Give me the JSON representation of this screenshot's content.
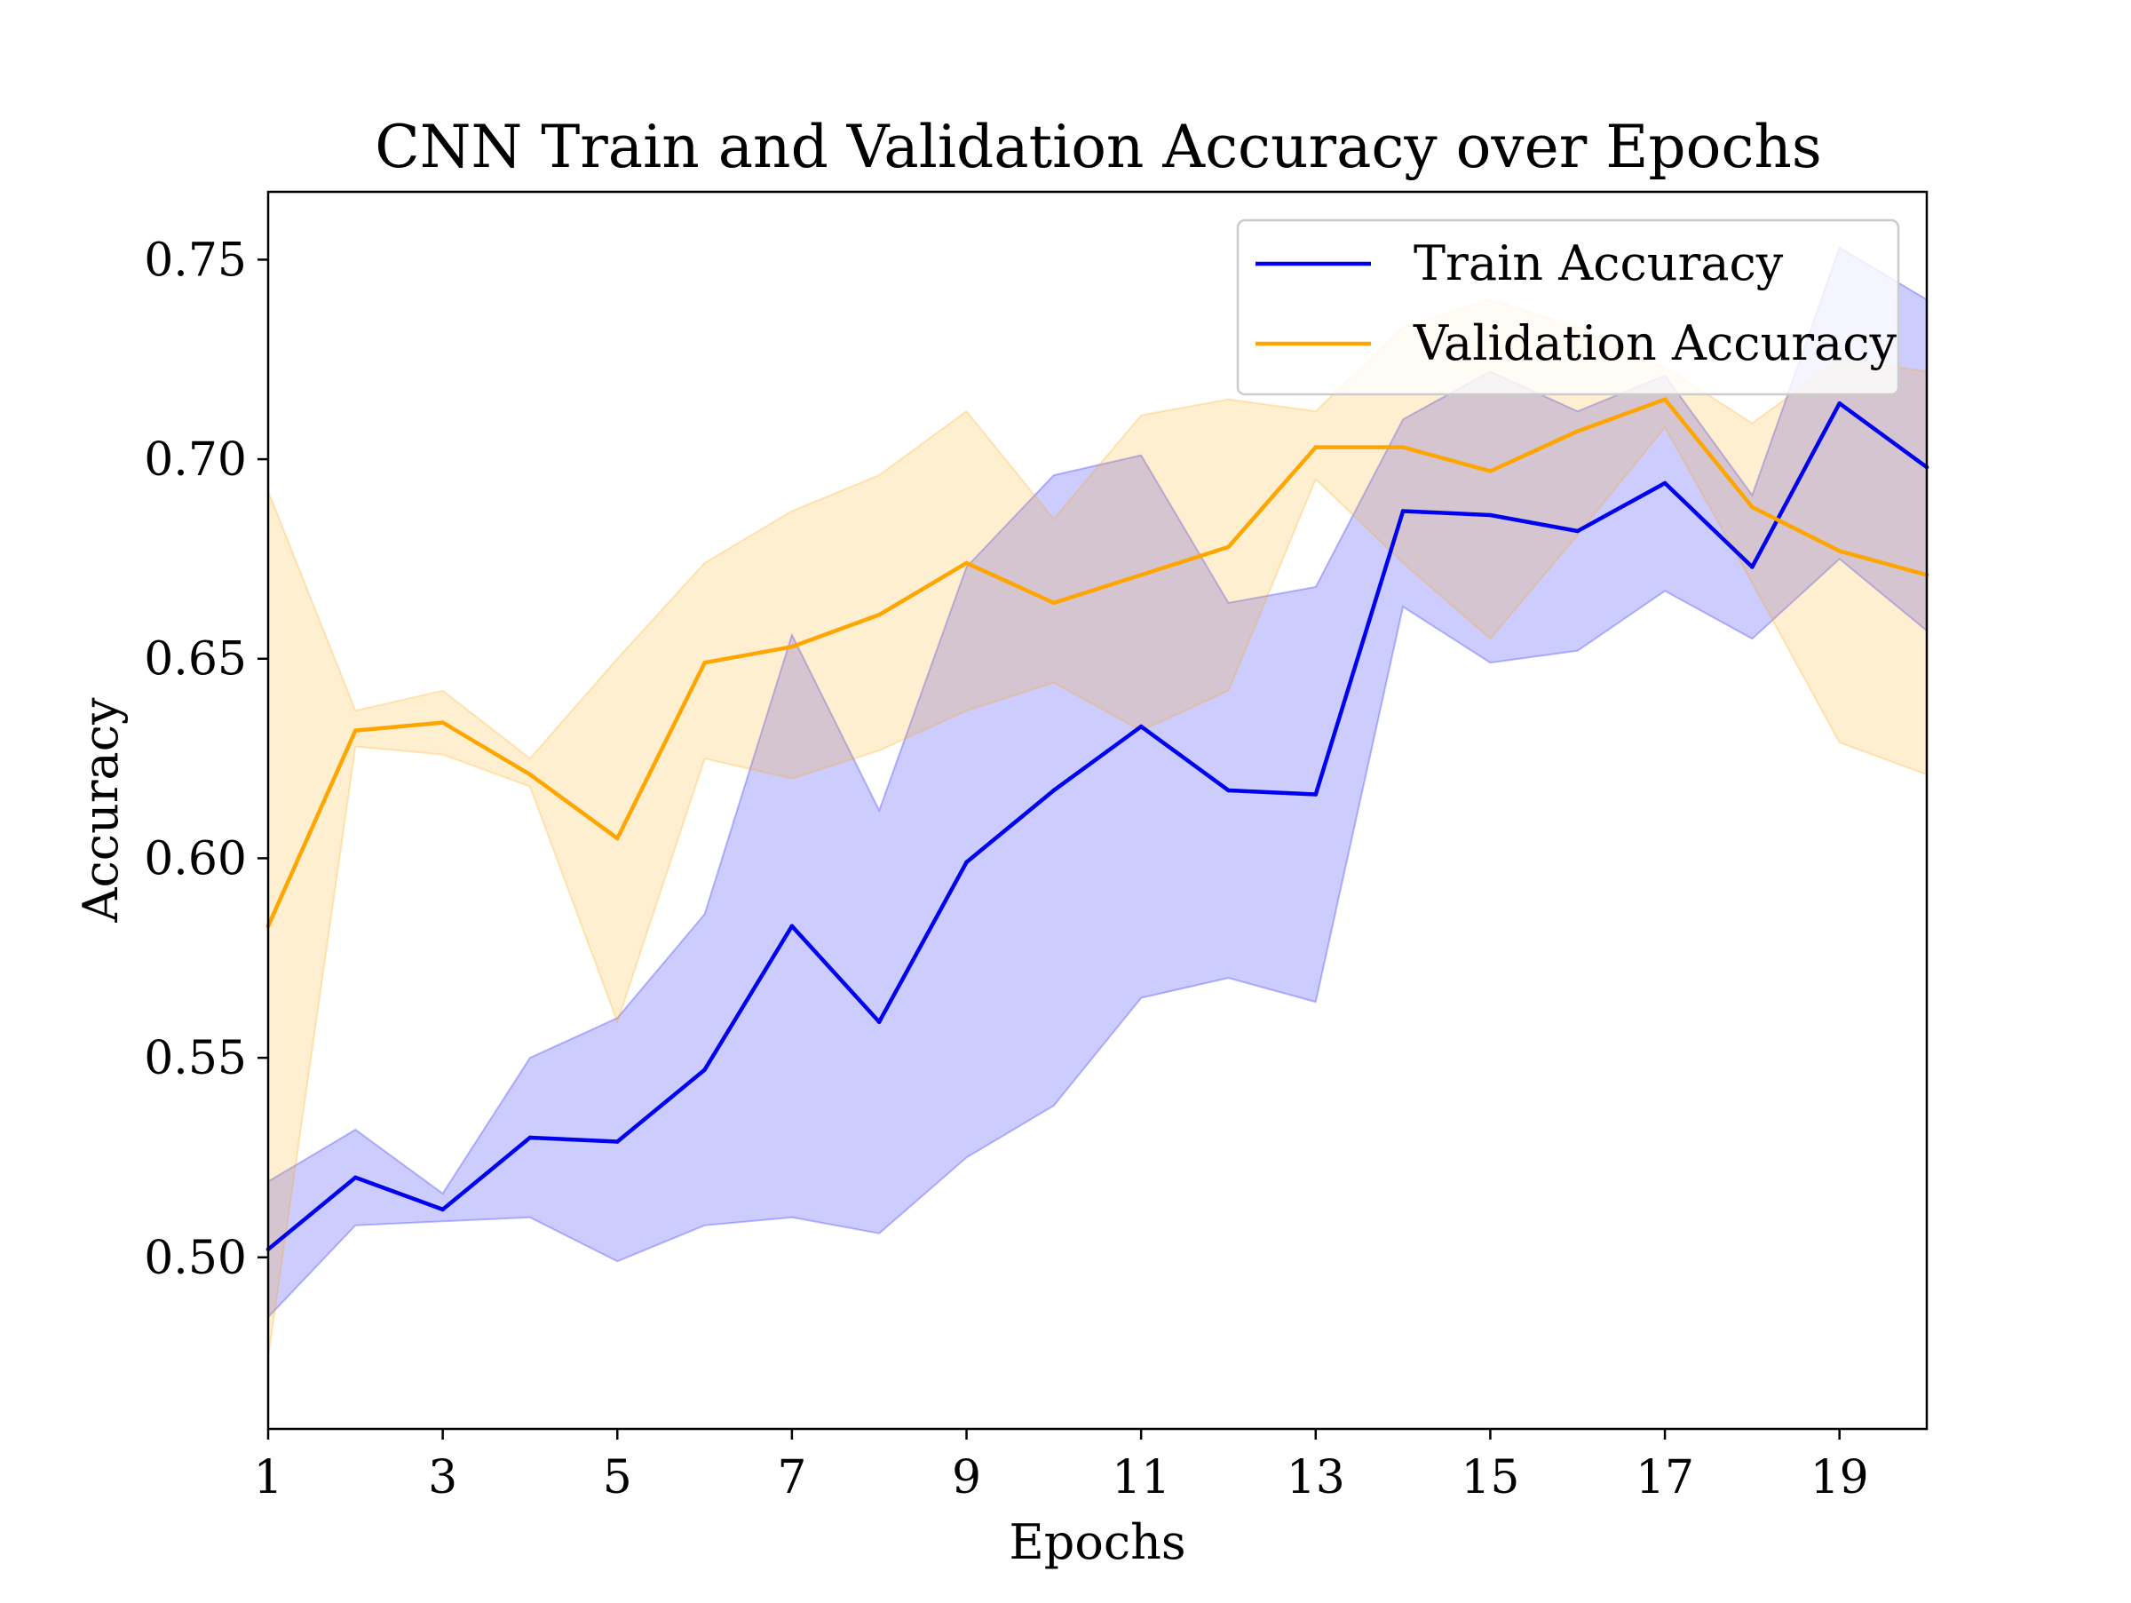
{
  "chart_data": {
    "type": "line",
    "title": "CNN Train and Validation Accuracy over Epochs",
    "xlabel": "Epochs",
    "ylabel": "Accuracy",
    "xlim": [
      1,
      20
    ],
    "ylim": [
      0.457,
      0.767
    ],
    "xticks": [
      1,
      3,
      5,
      7,
      9,
      11,
      13,
      15,
      17,
      19
    ],
    "yticks": [
      0.5,
      0.55,
      0.6,
      0.65,
      0.7,
      0.75
    ],
    "ytick_labels": [
      "0.50",
      "0.55",
      "0.60",
      "0.65",
      "0.70",
      "0.75"
    ],
    "grid": false,
    "legend_position": "top-right",
    "x": [
      1,
      2,
      3,
      4,
      5,
      6,
      7,
      8,
      9,
      10,
      11,
      12,
      13,
      14,
      15,
      16,
      17,
      18,
      19,
      20
    ],
    "series": [
      {
        "name": "Train Accuracy",
        "color": "#0000ee",
        "band_color": "#0000ff",
        "values": [
          0.502,
          0.52,
          0.512,
          0.53,
          0.529,
          0.547,
          0.583,
          0.559,
          0.599,
          0.617,
          0.633,
          0.617,
          0.616,
          0.687,
          0.686,
          0.682,
          0.694,
          0.673,
          0.714,
          0.698
        ],
        "lower": [
          0.485,
          0.508,
          0.509,
          0.51,
          0.499,
          0.508,
          0.51,
          0.506,
          0.525,
          0.538,
          0.565,
          0.57,
          0.564,
          0.663,
          0.649,
          0.652,
          0.667,
          0.655,
          0.675,
          0.657
        ],
        "upper": [
          0.519,
          0.532,
          0.516,
          0.55,
          0.56,
          0.586,
          0.656,
          0.612,
          0.673,
          0.696,
          0.701,
          0.664,
          0.668,
          0.71,
          0.722,
          0.712,
          0.721,
          0.691,
          0.753,
          0.74
        ]
      },
      {
        "name": "Validation Accuracy",
        "color": "#ffa500",
        "band_color": "#ffa500",
        "values": [
          0.583,
          0.632,
          0.634,
          0.621,
          0.605,
          0.649,
          0.653,
          0.661,
          0.674,
          0.664,
          0.671,
          0.678,
          0.703,
          0.703,
          0.697,
          0.707,
          0.715,
          0.688,
          0.677,
          0.671
        ],
        "lower": [
          0.475,
          0.628,
          0.626,
          0.618,
          0.559,
          0.625,
          0.62,
          0.627,
          0.637,
          0.644,
          0.632,
          0.642,
          0.695,
          0.674,
          0.655,
          0.681,
          0.708,
          0.669,
          0.629,
          0.621
        ],
        "upper": [
          0.692,
          0.637,
          0.642,
          0.625,
          0.65,
          0.674,
          0.687,
          0.696,
          0.712,
          0.685,
          0.711,
          0.715,
          0.712,
          0.733,
          0.74,
          0.733,
          0.723,
          0.709,
          0.725,
          0.722
        ]
      }
    ]
  }
}
